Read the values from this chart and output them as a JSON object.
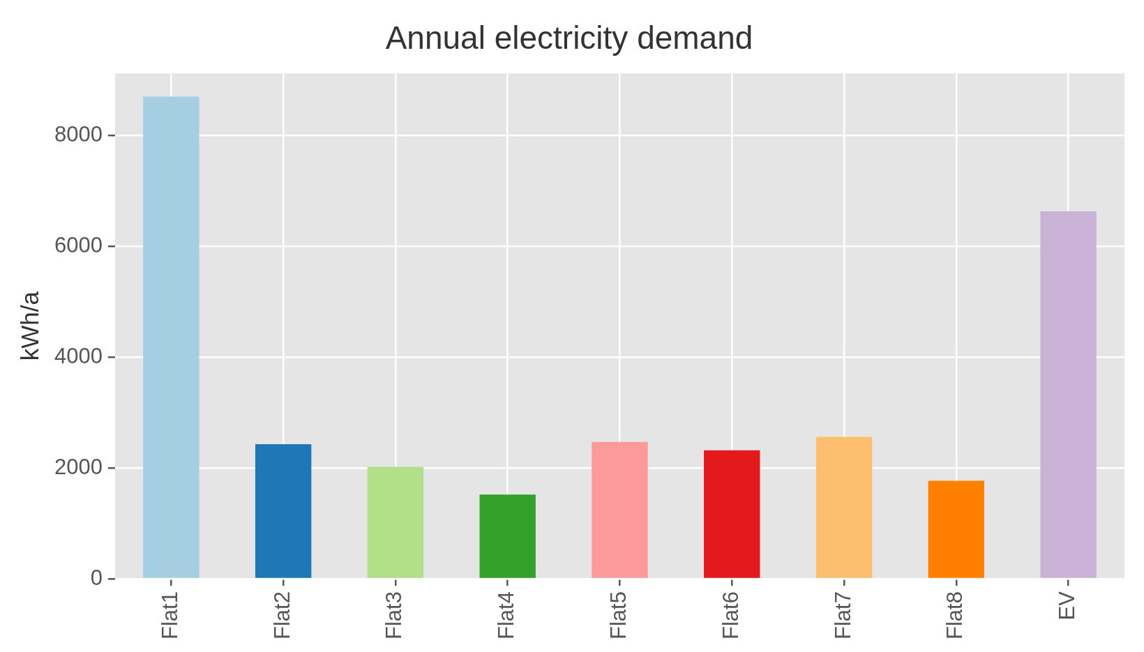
{
  "chart_data": {
    "type": "bar",
    "title": "Annual electricity demand",
    "ylabel": "kWh/a",
    "categories": [
      "Flat1",
      "Flat2",
      "Flat3",
      "Flat4",
      "Flat5",
      "Flat6",
      "Flat7",
      "Flat8",
      "EV"
    ],
    "values": [
      8700,
      2430,
      2020,
      1520,
      2470,
      2320,
      2560,
      1770,
      6630
    ],
    "colors": [
      "#a6cee3",
      "#1f78b4",
      "#b2df8a",
      "#33a02c",
      "#fb9a99",
      "#e31a1c",
      "#fdbf6f",
      "#ff7f00",
      "#cab2d6"
    ],
    "ylim": [
      0,
      9120
    ],
    "yticks": [
      0,
      2000,
      4000,
      6000,
      8000
    ],
    "grid": true,
    "legend": false
  }
}
